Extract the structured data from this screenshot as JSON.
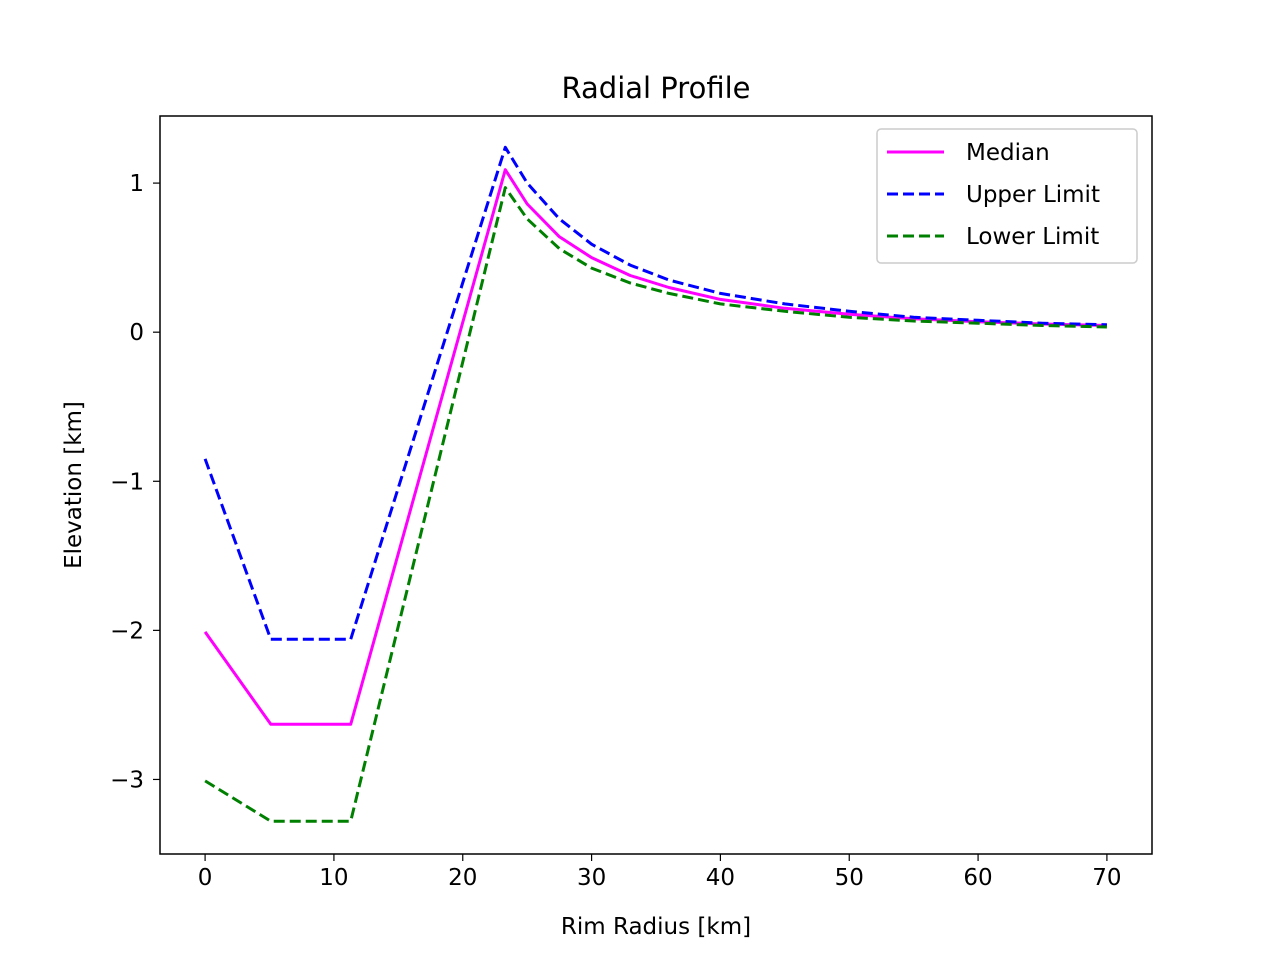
{
  "chart_data": {
    "type": "line",
    "title": "Radial Profile",
    "xlabel": "Rim Radius [km]",
    "ylabel": "Elevation [km]",
    "xlim": [
      -3.5,
      73.5
    ],
    "ylim": [
      -3.5,
      1.45
    ],
    "xticks": [
      0,
      10,
      20,
      30,
      40,
      50,
      60,
      70
    ],
    "yticks": [
      -3,
      -2,
      -1,
      0,
      1
    ],
    "grid": false,
    "legend_position": "top-right",
    "series": [
      {
        "name": "Median",
        "color": "#ff00ff",
        "style": "solid",
        "x": [
          0,
          5.1,
          11.3,
          23.3,
          25,
          27.5,
          30,
          33,
          36,
          40,
          45,
          50,
          55,
          60,
          65,
          70
        ],
        "y": [
          -2.01,
          -2.63,
          -2.63,
          1.09,
          0.86,
          0.64,
          0.5,
          0.38,
          0.3,
          0.22,
          0.16,
          0.12,
          0.09,
          0.07,
          0.055,
          0.045
        ]
      },
      {
        "name": "Upper Limit",
        "color": "#0000ff",
        "style": "dashed",
        "x": [
          0,
          5.1,
          11.3,
          23.3,
          25,
          27.5,
          30,
          33,
          36,
          40,
          45,
          50,
          55,
          60,
          65,
          70
        ],
        "y": [
          -0.85,
          -2.06,
          -2.06,
          1.24,
          1.0,
          0.76,
          0.59,
          0.45,
          0.35,
          0.26,
          0.19,
          0.14,
          0.1,
          0.08,
          0.06,
          0.05
        ]
      },
      {
        "name": "Lower Limit",
        "color": "#008000",
        "style": "dashed",
        "x": [
          0,
          5.1,
          11.3,
          23.3,
          25,
          27.5,
          30,
          33,
          36,
          40,
          45,
          50,
          55,
          60,
          65,
          70
        ],
        "y": [
          -3.01,
          -3.28,
          -3.28,
          0.97,
          0.76,
          0.56,
          0.43,
          0.33,
          0.26,
          0.19,
          0.14,
          0.1,
          0.075,
          0.06,
          0.045,
          0.035
        ]
      }
    ]
  }
}
